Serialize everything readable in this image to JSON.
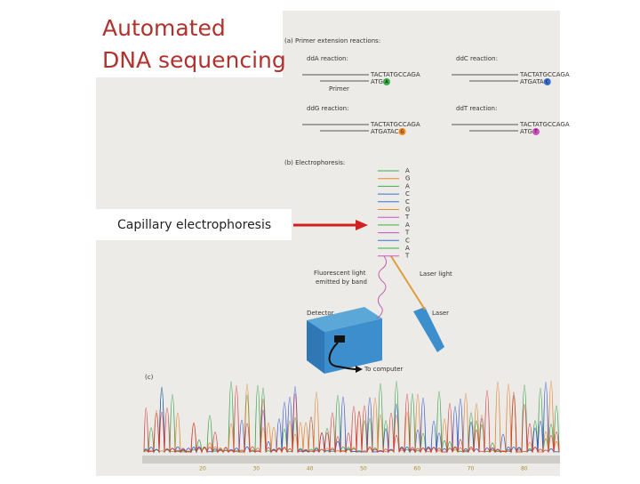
{
  "title_lines": [
    "Automated",
    "DNA sequencing"
  ],
  "callout": "Capillary electrophoresis",
  "figure": {
    "part_a": {
      "label": "(a) Primer extension reactions:",
      "primer_label": "Primer",
      "reactions": [
        {
          "name": "ddA reaction:",
          "template": "TACTATGCCAGA",
          "product": "ATG",
          "dot": "A"
        },
        {
          "name": "ddC reaction:",
          "template": "TACTATGCCAGA",
          "product": "ATGATA",
          "dot": "C"
        },
        {
          "name": "ddG reaction:",
          "template": "TACTATGCCAGA",
          "product": "ATGATAC",
          "dot": "G"
        },
        {
          "name": "ddT reaction:",
          "template": "TACTATGCCAGA",
          "product": "ATG",
          "dot": "T"
        }
      ]
    },
    "part_b": {
      "label": "(b) Electrophoresis:",
      "bands": [
        "A",
        "G",
        "A",
        "C",
        "C",
        "G",
        "T",
        "A",
        "T",
        "C",
        "A",
        "T"
      ],
      "fluorescent_label": [
        "Fluorescent light",
        "emitted by band"
      ],
      "laser_light_label": "Laser light",
      "detector_label": "Detector",
      "laser_label": "Laser",
      "computer_label": "To computer"
    },
    "part_c": {
      "label": "(c)",
      "positions": [
        "20",
        "30",
        "40",
        "50",
        "60",
        "70",
        "80"
      ]
    }
  }
}
